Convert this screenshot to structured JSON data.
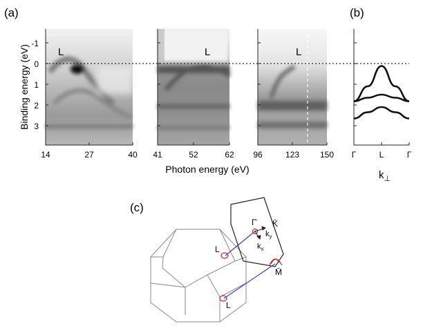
{
  "panels": {
    "a": "(a)",
    "b": "(b)",
    "c": "(c)"
  },
  "panel_a": {
    "ylabel": "Binding energy (eV)",
    "xlabel": "Photon energy (eV)",
    "point_label": "L",
    "y_ticks": [
      "-1",
      "0",
      "1",
      "2",
      "3"
    ],
    "subplots": [
      {
        "x_ticks": [
          "14",
          "27",
          "40"
        ]
      },
      {
        "x_ticks": [
          "41",
          "52",
          "62"
        ]
      },
      {
        "x_ticks": [
          "96",
          "123",
          "150"
        ]
      }
    ]
  },
  "panel_b": {
    "x_ticks": [
      "Γ",
      "L",
      "Γ"
    ],
    "xlabel": "k",
    "xlabel_sub": "⊥"
  },
  "panel_c": {
    "labels": {
      "gamma": "Γ̄",
      "k": "K̄",
      "m": "M̄",
      "ky": "k",
      "ky_sub": "y",
      "kx": "k",
      "kx_sub": "x",
      "l_top": "L",
      "l_bottom": "L"
    }
  },
  "chart_data": {
    "type": "line",
    "xlabel": "k⊥",
    "ylabel": "",
    "x_ticks": [
      "Γ",
      "L",
      "Γ"
    ],
    "series": [
      {
        "points": [
          [
            0,
            1.82
          ],
          [
            0.25,
            1.1
          ],
          [
            0.5,
            0.12
          ],
          [
            0.75,
            1.1
          ],
          [
            1,
            1.82
          ]
        ]
      },
      {
        "points": [
          [
            0,
            1.82
          ],
          [
            0.25,
            1.65
          ],
          [
            0.5,
            1.5
          ],
          [
            0.75,
            1.65
          ],
          [
            1,
            1.82
          ]
        ]
      },
      {
        "points": [
          [
            0,
            2.65
          ],
          [
            0.25,
            2.35
          ],
          [
            0.5,
            2.1
          ],
          [
            0.75,
            2.35
          ],
          [
            1,
            2.65
          ]
        ]
      }
    ],
    "ylim": [
      3.2,
      -1.3
    ]
  }
}
